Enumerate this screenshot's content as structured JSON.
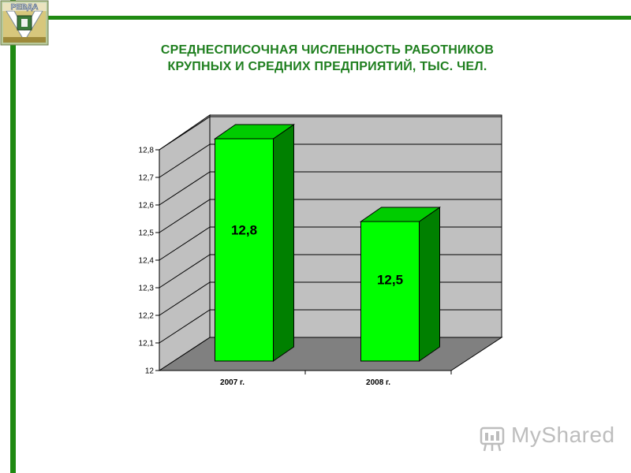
{
  "title": {
    "line1": "СРЕДНЕСПИСОЧНАЯ ЧИСЛЕННОСТЬ РАБОТНИКОВ",
    "line2": "КРУПНЫХ И СРЕДНИХ ПРЕДПРИЯТИЙ, ТЫС. ЧЕЛ."
  },
  "logo": {
    "text": "РЕВДА"
  },
  "watermark": {
    "text": "MyShared"
  },
  "colors": {
    "frame": "#1f8a12",
    "bar_front": "#00ff00",
    "bar_side": "#008000",
    "bar_top": "#00cc00",
    "wall": "#c0c0c0",
    "floor": "#808080",
    "title": "#1f7f1f"
  },
  "chart_data": {
    "type": "bar",
    "categories": [
      "2007 г.",
      "2008 г."
    ],
    "values": [
      12.8,
      12.5
    ],
    "data_labels": [
      "12,8",
      "12,5"
    ],
    "ylim": [
      12,
      12.8
    ],
    "yticks": [
      "12",
      "12,1",
      "12,2",
      "12,3",
      "12,4",
      "12,5",
      "12,6",
      "12,7",
      "12,8"
    ],
    "grid": true,
    "three_d": true
  }
}
